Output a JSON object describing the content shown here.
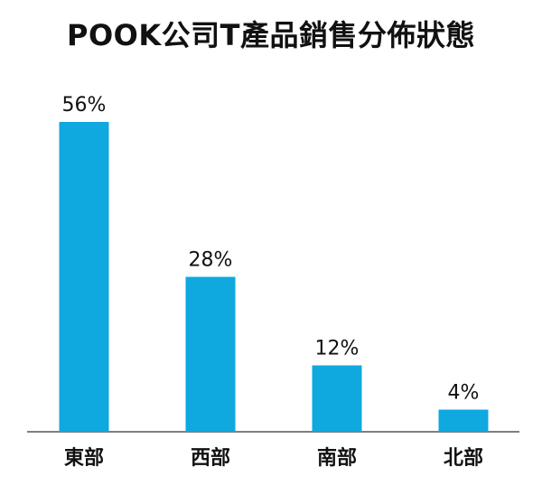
{
  "chart_data": {
    "type": "bar",
    "title": "POOK公司T產品銷售分佈狀態",
    "xlabel": "",
    "ylabel": "",
    "categories": [
      "東部",
      "西部",
      "南部",
      "北部"
    ],
    "values": [
      56,
      28,
      12,
      4
    ],
    "value_labels": [
      "56%",
      "28%",
      "12%",
      "4%"
    ],
    "ylim": [
      0,
      60
    ],
    "grid": false,
    "legend": "none",
    "bar_color": "#0fa8df",
    "axis_color": "#7f7f7f"
  }
}
